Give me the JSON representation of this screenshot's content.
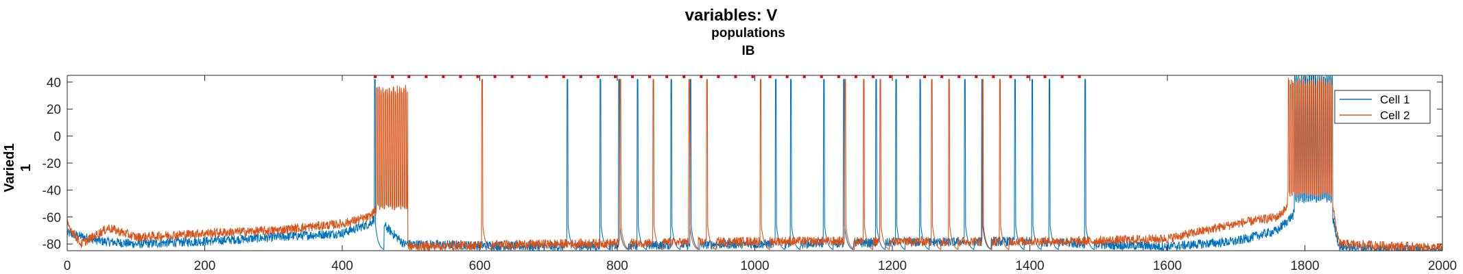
{
  "chart_data": {
    "type": "line",
    "title": "variables: V",
    "subtitle_lines": [
      "populations",
      "IB"
    ],
    "ylabel_lines": [
      "Varied1",
      "1"
    ],
    "xlim": [
      0,
      2000
    ],
    "ylim": [
      -85,
      45
    ],
    "x_ticks": [
      0,
      200,
      400,
      600,
      800,
      1000,
      1200,
      1400,
      1600,
      1800,
      2000
    ],
    "y_ticks": [
      40,
      20,
      0,
      -20,
      -40,
      -60,
      -80
    ],
    "colors": {
      "cell1": "#0072BD",
      "cell2": "#D95319",
      "spike_markers": "#FF0000"
    },
    "legend": {
      "position": "top-right",
      "entries": [
        {
          "label": "Cell 1",
          "color": "#0072BD"
        },
        {
          "label": "Cell 2",
          "color": "#D95319"
        }
      ]
    },
    "series": [
      {
        "name": "Cell 1",
        "color": "#0072BD",
        "baseline": [
          [
            0,
            -72
          ],
          [
            50,
            -78
          ],
          [
            100,
            -80
          ],
          [
            200,
            -78
          ],
          [
            300,
            -75
          ],
          [
            400,
            -72
          ],
          [
            440,
            -65
          ],
          [
            448,
            -60
          ],
          [
            490,
            -80
          ],
          [
            700,
            -82
          ],
          [
            1000,
            -80
          ],
          [
            1400,
            -78
          ],
          [
            1480,
            -80
          ],
          [
            1600,
            -82
          ],
          [
            1700,
            -78
          ],
          [
            1760,
            -70
          ],
          [
            1790,
            -55
          ],
          [
            1840,
            -60
          ],
          [
            1850,
            -82
          ],
          [
            2000,
            -85
          ]
        ],
        "spikes": [
          447,
          727,
          775,
          802,
          829,
          878,
          906,
          1030,
          1052,
          1100,
          1129,
          1176,
          1205,
          1240,
          1305,
          1330,
          1378,
          1403,
          1428,
          1480
        ],
        "bursts": [
          [
            1785,
            1840,
            40,
            -50
          ]
        ]
      },
      {
        "name": "Cell 2",
        "color": "#D95319",
        "baseline": [
          [
            0,
            -65
          ],
          [
            20,
            -80
          ],
          [
            60,
            -68
          ],
          [
            100,
            -75
          ],
          [
            200,
            -72
          ],
          [
            300,
            -70
          ],
          [
            400,
            -65
          ],
          [
            440,
            -60
          ],
          [
            448,
            -55
          ],
          [
            490,
            -82
          ],
          [
            700,
            -80
          ],
          [
            1000,
            -78
          ],
          [
            1480,
            -78
          ],
          [
            1600,
            -76
          ],
          [
            1700,
            -65
          ],
          [
            1760,
            -60
          ],
          [
            1790,
            -45
          ],
          [
            1840,
            -52
          ],
          [
            1850,
            -80
          ],
          [
            2000,
            -83
          ]
        ],
        "spikes": [
          603,
          804,
          852,
          904,
          930,
          1008,
          1131,
          1158,
          1182,
          1257,
          1282,
          1331,
          1356
        ],
        "bursts": [
          [
            450,
            495,
            30,
            -55
          ],
          [
            1775,
            1840,
            35,
            -45
          ]
        ]
      }
    ],
    "spike_marker_x": [
      448,
      473,
      497,
      522,
      547,
      572,
      597,
      622,
      647,
      672,
      697,
      722,
      747,
      772,
      797,
      822,
      847,
      872,
      897,
      922,
      947,
      972,
      997,
      1022,
      1047,
      1072,
      1097,
      1122,
      1147,
      1172,
      1197,
      1222,
      1247,
      1272,
      1297,
      1322,
      1347,
      1372,
      1397,
      1422,
      1447,
      1472
    ],
    "spike_marker_y": 44
  }
}
